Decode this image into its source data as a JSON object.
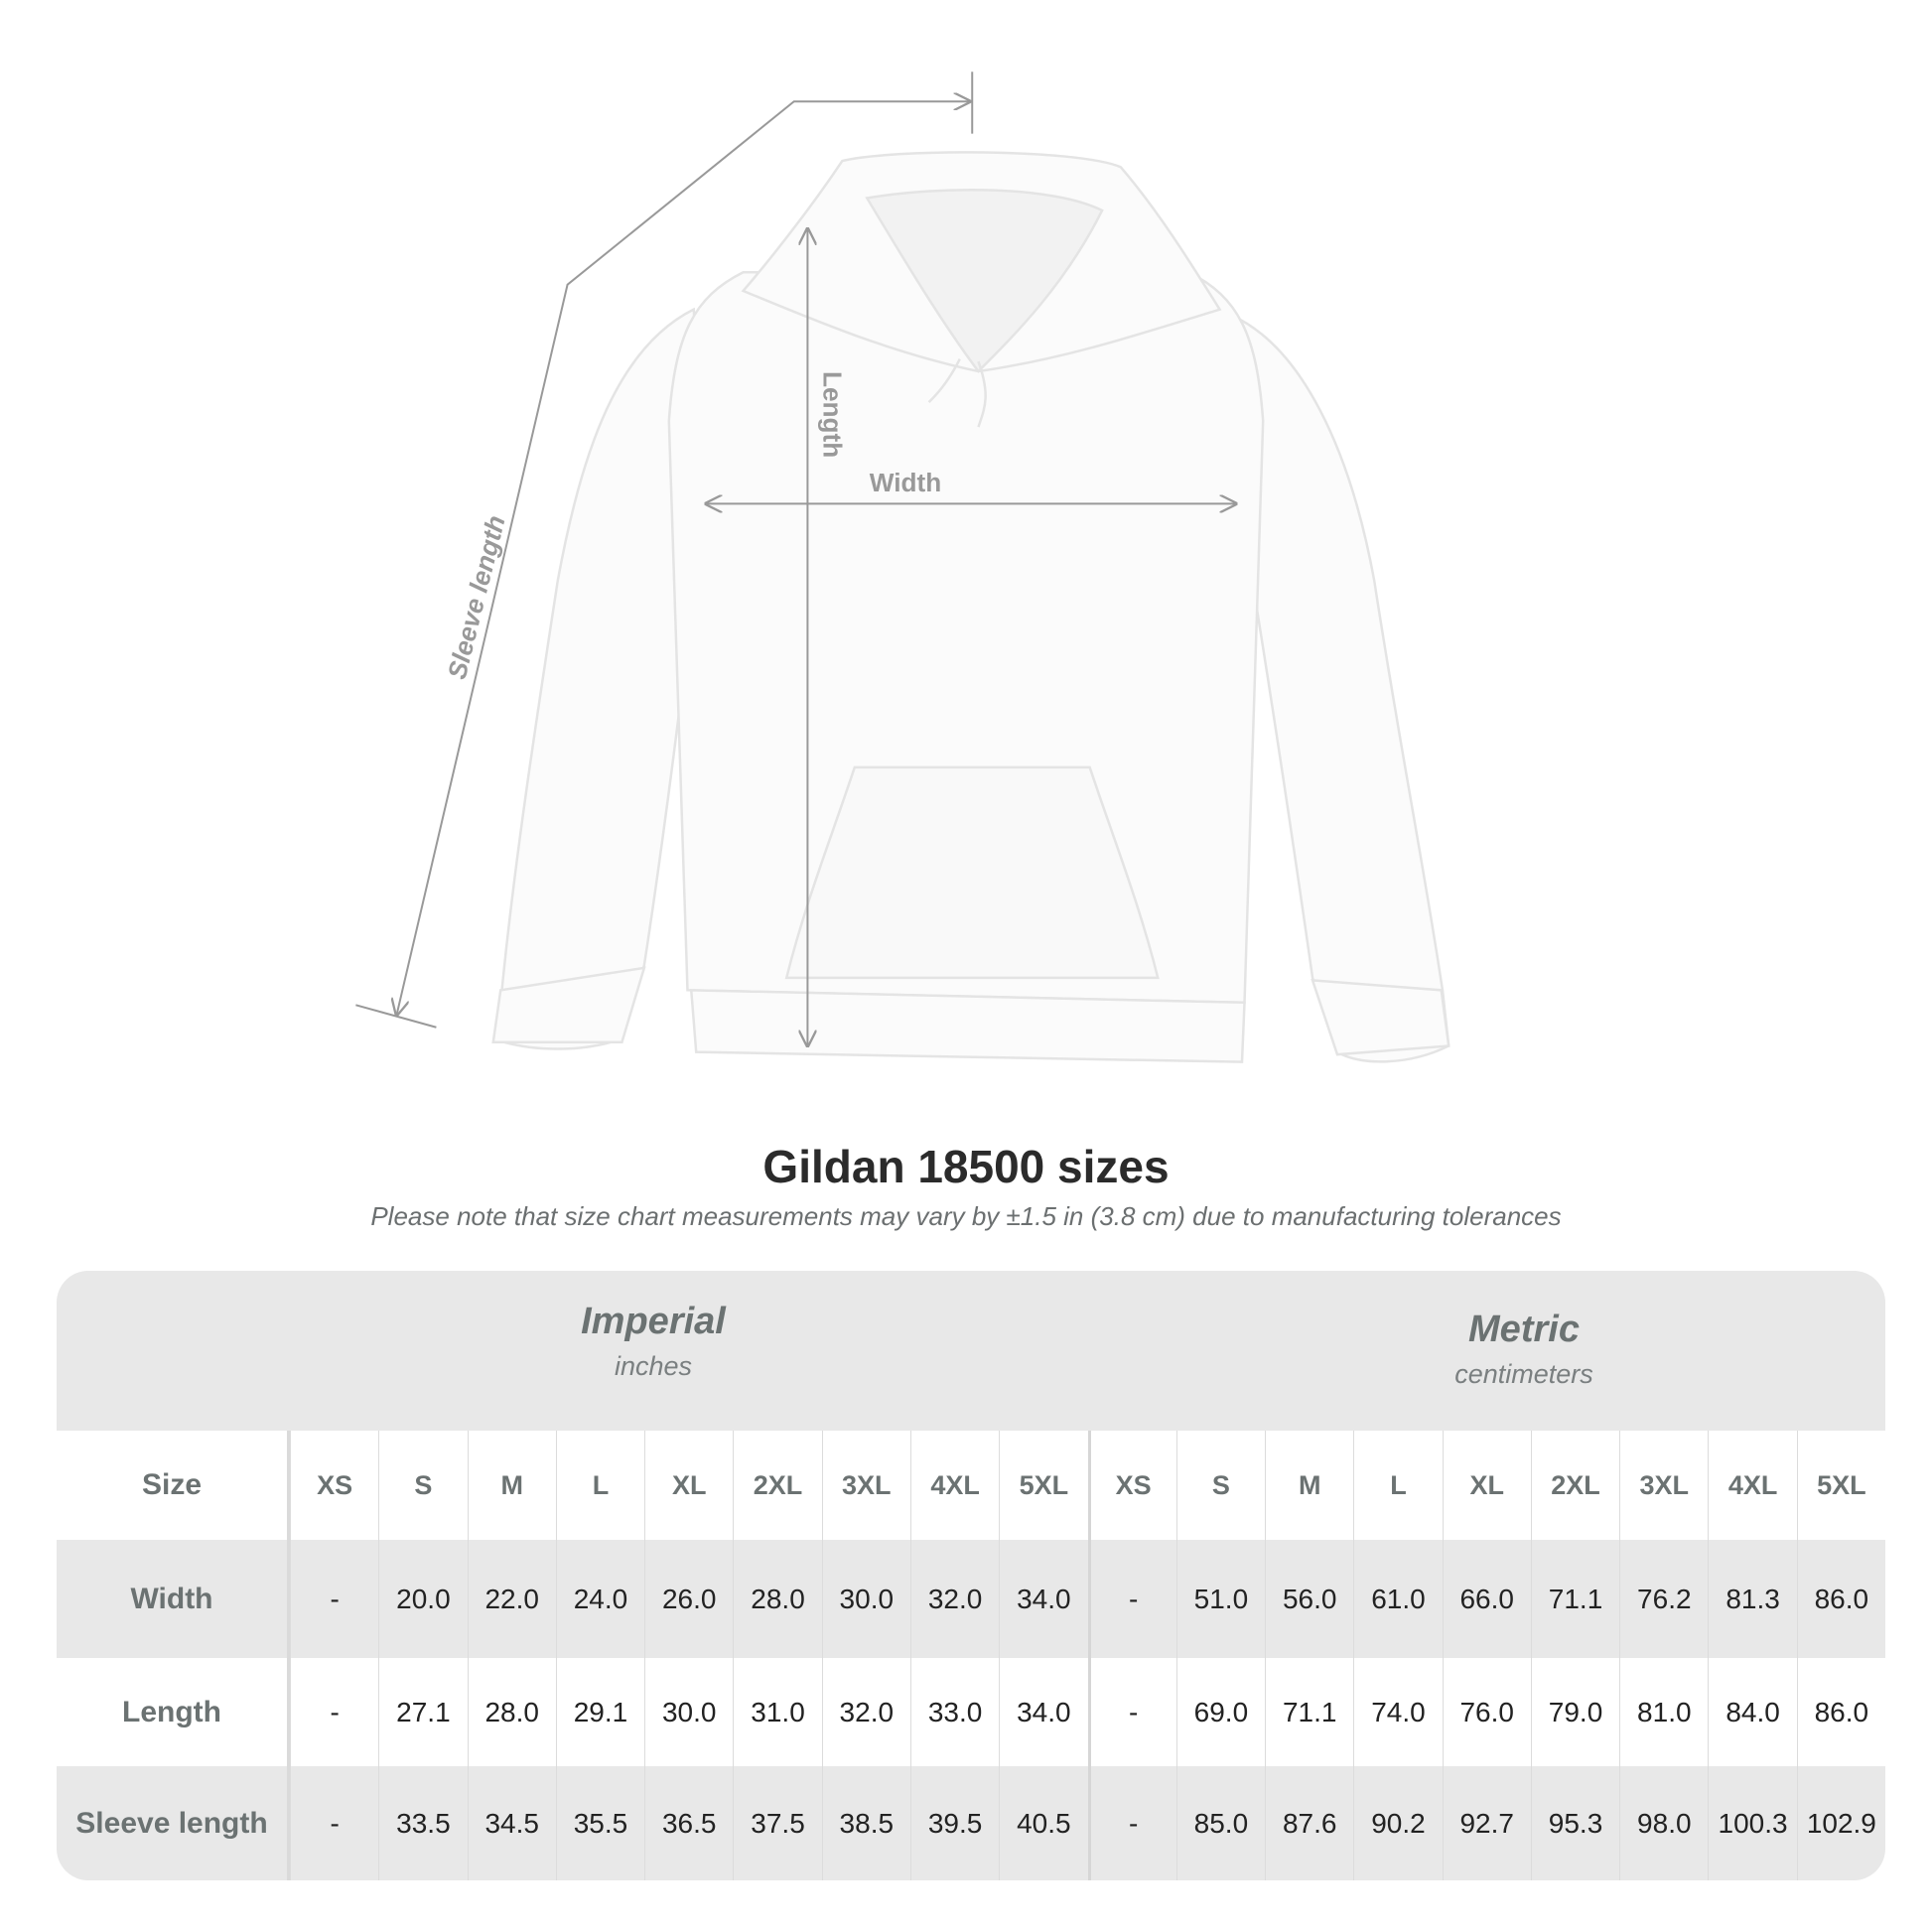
{
  "diagram": {
    "labels": {
      "length": "Length",
      "width": "Width",
      "sleeve": "Sleeve length"
    },
    "line_color": "#999999"
  },
  "title": "Gildan 18500 sizes",
  "subtitle": "Please note that size chart measurements may vary by ±1.5 in (3.8 cm) due to manufacturing tolerances",
  "table": {
    "imperial": {
      "name": "Imperial",
      "unit": "inches"
    },
    "metric": {
      "name": "Metric",
      "unit": "centimeters"
    },
    "size_label": "Size",
    "sizes": [
      "XS",
      "S",
      "M",
      "L",
      "XL",
      "2XL",
      "3XL",
      "4XL",
      "5XL"
    ],
    "rows": [
      {
        "label": "Width",
        "imperial": [
          "-",
          "20.0",
          "22.0",
          "24.0",
          "26.0",
          "28.0",
          "30.0",
          "32.0",
          "34.0"
        ],
        "metric": [
          "-",
          "51.0",
          "56.0",
          "61.0",
          "66.0",
          "71.1",
          "76.2",
          "81.3",
          "86.0"
        ]
      },
      {
        "label": "Length",
        "imperial": [
          "-",
          "27.1",
          "28.0",
          "29.1",
          "30.0",
          "31.0",
          "32.0",
          "33.0",
          "34.0"
        ],
        "metric": [
          "-",
          "69.0",
          "71.1",
          "74.0",
          "76.0",
          "79.0",
          "81.0",
          "84.0",
          "86.0"
        ]
      },
      {
        "label": "Sleeve length",
        "imperial": [
          "-",
          "33.5",
          "34.5",
          "35.5",
          "36.5",
          "37.5",
          "38.5",
          "39.5",
          "40.5"
        ],
        "metric": [
          "-",
          "85.0",
          "87.6",
          "90.2",
          "92.7",
          "95.3",
          "98.0",
          "100.3",
          "102.9"
        ]
      }
    ],
    "colors": {
      "header_bg": "#e8e8e8",
      "label_text": "#6b7272"
    }
  }
}
